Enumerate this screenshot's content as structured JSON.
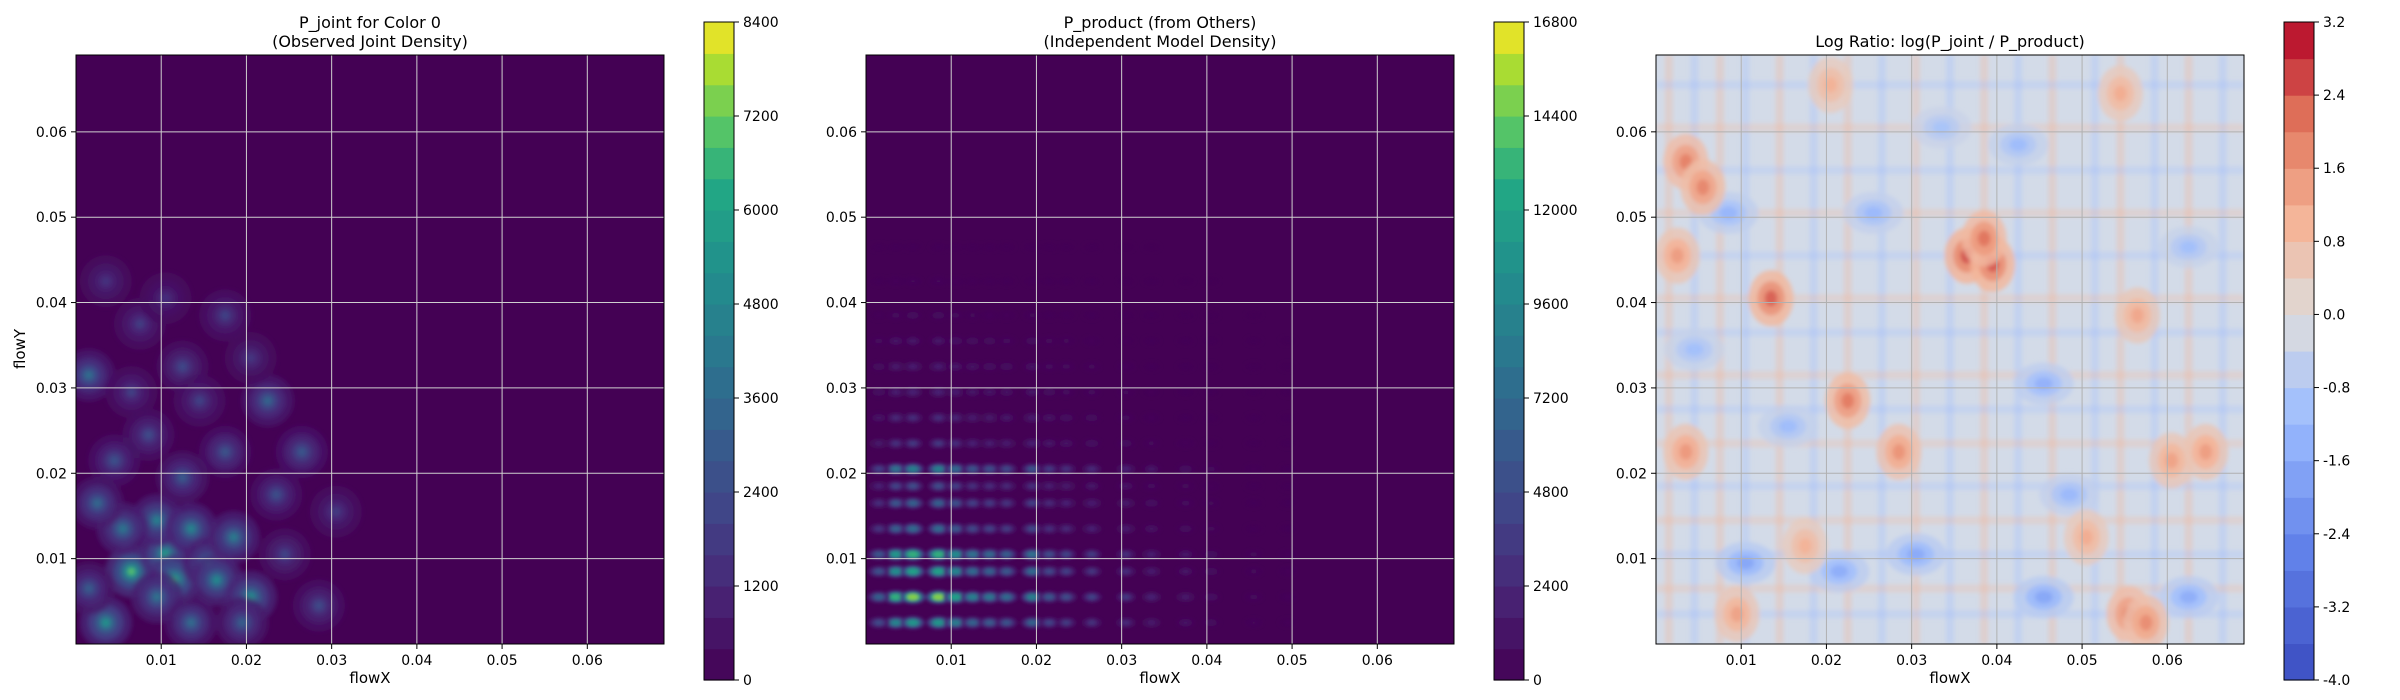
{
  "chart_data": [
    {
      "type": "heatmap",
      "title": "P_joint for Color 0",
      "subtitle": "(Observed Joint Density)",
      "xlabel": "flowX",
      "ylabel": "flowY",
      "xlim": [
        0.0,
        0.069
      ],
      "ylim": [
        0.0,
        0.069
      ],
      "xticks": [
        "0.01",
        "0.02",
        "0.03",
        "0.04",
        "0.05",
        "0.06"
      ],
      "yticks": [
        "0.01",
        "0.02",
        "0.03",
        "0.04",
        "0.05",
        "0.06"
      ],
      "grid": true,
      "colormap": "viridis",
      "colorbar": {
        "min": 0,
        "max": 8400,
        "ticks": [
          "0",
          "1200",
          "2400",
          "3600",
          "4800",
          "6000",
          "7200",
          "8400"
        ]
      },
      "hotspots": [
        {
          "x": 0.0035,
          "y": 0.0025,
          "v": 5600
        },
        {
          "x": 0.0065,
          "y": 0.0085,
          "v": 7200
        },
        {
          "x": 0.0105,
          "y": 0.0105,
          "v": 6200
        },
        {
          "x": 0.0115,
          "y": 0.0075,
          "v": 6800
        },
        {
          "x": 0.0095,
          "y": 0.0145,
          "v": 4800
        },
        {
          "x": 0.0135,
          "y": 0.0135,
          "v": 5000
        },
        {
          "x": 0.0155,
          "y": 0.0095,
          "v": 4400
        },
        {
          "x": 0.0185,
          "y": 0.0125,
          "v": 4600
        },
        {
          "x": 0.0165,
          "y": 0.0075,
          "v": 5200
        },
        {
          "x": 0.0205,
          "y": 0.0055,
          "v": 5400
        },
        {
          "x": 0.0095,
          "y": 0.0055,
          "v": 4200
        },
        {
          "x": 0.0055,
          "y": 0.0135,
          "v": 4300
        },
        {
          "x": 0.0025,
          "y": 0.0165,
          "v": 3800
        },
        {
          "x": 0.0015,
          "y": 0.0315,
          "v": 4000
        },
        {
          "x": 0.0225,
          "y": 0.0285,
          "v": 3600
        },
        {
          "x": 0.0265,
          "y": 0.0225,
          "v": 3000
        },
        {
          "x": 0.0125,
          "y": 0.0195,
          "v": 3200
        },
        {
          "x": 0.0175,
          "y": 0.0225,
          "v": 2900
        },
        {
          "x": 0.0085,
          "y": 0.0245,
          "v": 2600
        },
        {
          "x": 0.0125,
          "y": 0.0325,
          "v": 2400
        },
        {
          "x": 0.0175,
          "y": 0.0385,
          "v": 2200
        },
        {
          "x": 0.0075,
          "y": 0.0375,
          "v": 2000
        },
        {
          "x": 0.0035,
          "y": 0.0425,
          "v": 1700
        },
        {
          "x": 0.0235,
          "y": 0.0175,
          "v": 2700
        },
        {
          "x": 0.0285,
          "y": 0.0045,
          "v": 2500
        },
        {
          "x": 0.0245,
          "y": 0.0105,
          "v": 2300
        },
        {
          "x": 0.0195,
          "y": 0.0025,
          "v": 3400
        },
        {
          "x": 0.0045,
          "y": 0.0215,
          "v": 2800
        },
        {
          "x": 0.0145,
          "y": 0.0285,
          "v": 2200
        },
        {
          "x": 0.0305,
          "y": 0.0155,
          "v": 1900
        },
        {
          "x": 0.0205,
          "y": 0.0335,
          "v": 1800
        },
        {
          "x": 0.0015,
          "y": 0.0065,
          "v": 3300
        },
        {
          "x": 0.0135,
          "y": 0.0025,
          "v": 3900
        },
        {
          "x": 0.0105,
          "y": 0.0405,
          "v": 1600
        },
        {
          "x": 0.0065,
          "y": 0.0295,
          "v": 2100
        }
      ]
    },
    {
      "type": "heatmap",
      "title": "P_product (from Others)",
      "subtitle": "(Independent Model Density)",
      "xlabel": "flowX",
      "ylabel": "",
      "xlim": [
        0.0,
        0.069
      ],
      "ylim": [
        0.0,
        0.069
      ],
      "xticks": [
        "0.01",
        "0.02",
        "0.03",
        "0.04",
        "0.05",
        "0.06"
      ],
      "yticks": [
        "0.01",
        "0.02",
        "0.03",
        "0.04",
        "0.05",
        "0.06"
      ],
      "grid": true,
      "colormap": "viridis",
      "colorbar": {
        "min": 0,
        "max": 16800,
        "ticks": [
          "0",
          "2400",
          "4800",
          "7200",
          "9600",
          "12000",
          "14400",
          "16800"
        ]
      },
      "marginal_x_peaks": [
        {
          "x": 0.0035,
          "w": 0.9
        },
        {
          "x": 0.0055,
          "w": 1.0
        },
        {
          "x": 0.0085,
          "w": 1.0
        },
        {
          "x": 0.0105,
          "w": 0.85
        },
        {
          "x": 0.0125,
          "w": 0.7
        },
        {
          "x": 0.0145,
          "w": 0.65
        },
        {
          "x": 0.0165,
          "w": 0.6
        },
        {
          "x": 0.0195,
          "w": 0.7
        },
        {
          "x": 0.0215,
          "w": 0.5
        },
        {
          "x": 0.0235,
          "w": 0.45
        },
        {
          "x": 0.0265,
          "w": 0.4
        },
        {
          "x": 0.0305,
          "w": 0.35
        },
        {
          "x": 0.0335,
          "w": 0.25
        },
        {
          "x": 0.0375,
          "w": 0.2
        },
        {
          "x": 0.0405,
          "w": 0.15
        },
        {
          "x": 0.0455,
          "w": 0.1
        },
        {
          "x": 0.0495,
          "w": 0.08
        },
        {
          "x": 0.0015,
          "w": 0.55
        }
      ],
      "marginal_y_peaks": [
        {
          "y": 0.0025,
          "w": 0.8
        },
        {
          "y": 0.0055,
          "w": 1.0
        },
        {
          "y": 0.0085,
          "w": 0.85
        },
        {
          "y": 0.0105,
          "w": 0.9
        },
        {
          "y": 0.0135,
          "w": 0.6
        },
        {
          "y": 0.0165,
          "w": 0.55
        },
        {
          "y": 0.0185,
          "w": 0.45
        },
        {
          "y": 0.0205,
          "w": 0.7
        },
        {
          "y": 0.0235,
          "w": 0.35
        },
        {
          "y": 0.0265,
          "w": 0.3
        },
        {
          "y": 0.0295,
          "w": 0.25
        },
        {
          "y": 0.0325,
          "w": 0.22
        },
        {
          "y": 0.0355,
          "w": 0.18
        },
        {
          "y": 0.0385,
          "w": 0.12
        },
        {
          "y": 0.0425,
          "w": 0.08
        },
        {
          "y": 0.0465,
          "w": 0.05
        }
      ]
    },
    {
      "type": "heatmap",
      "title": "Log Ratio: log(P_joint / P_product)",
      "subtitle": "",
      "xlabel": "flowX",
      "ylabel": "",
      "xlim": [
        0.0,
        0.069
      ],
      "ylim": [
        0.0,
        0.069
      ],
      "xticks": [
        "0.01",
        "0.02",
        "0.03",
        "0.04",
        "0.05",
        "0.06"
      ],
      "yticks": [
        "0.01",
        "0.02",
        "0.03",
        "0.04",
        "0.05",
        "0.06"
      ],
      "grid": true,
      "colormap": "coolwarm",
      "colorbar": {
        "min": -4.0,
        "max": 3.2,
        "ticks": [
          "-4.0",
          "-3.2",
          "-2.4",
          "-1.6",
          "-0.8",
          "0.0",
          "0.8",
          "1.6",
          "2.4",
          "3.2"
        ]
      },
      "hot_regions": [
        {
          "x": 0.0035,
          "y": 0.0565,
          "v": 2.0
        },
        {
          "x": 0.0055,
          "y": 0.0535,
          "v": 1.9
        },
        {
          "x": 0.0025,
          "y": 0.0455,
          "v": 1.5
        },
        {
          "x": 0.0135,
          "y": 0.0405,
          "v": 2.4
        },
        {
          "x": 0.0365,
          "y": 0.0455,
          "v": 2.6
        },
        {
          "x": 0.0395,
          "y": 0.0445,
          "v": 2.5
        },
        {
          "x": 0.0385,
          "y": 0.0475,
          "v": 2.2
        },
        {
          "x": 0.0555,
          "y": 0.0035,
          "v": 2.0
        },
        {
          "x": 0.0575,
          "y": 0.0025,
          "v": 1.8
        },
        {
          "x": 0.0225,
          "y": 0.0285,
          "v": 2.1
        },
        {
          "x": 0.0285,
          "y": 0.0225,
          "v": 1.7
        },
        {
          "x": 0.0035,
          "y": 0.0225,
          "v": 1.6
        },
        {
          "x": 0.0605,
          "y": 0.0215,
          "v": 1.4
        },
        {
          "x": 0.0645,
          "y": 0.0225,
          "v": 1.5
        },
        {
          "x": 0.0565,
          "y": 0.0385,
          "v": 1.3
        },
        {
          "x": 0.0505,
          "y": 0.0125,
          "v": 1.2
        },
        {
          "x": 0.0205,
          "y": 0.0655,
          "v": 1.1
        },
        {
          "x": 0.0545,
          "y": 0.0645,
          "v": 1.2
        },
        {
          "x": 0.0095,
          "y": 0.0035,
          "v": 1.4
        },
        {
          "x": 0.0175,
          "y": 0.0115,
          "v": 1.1
        }
      ],
      "cold_regions": [
        {
          "x": 0.0105,
          "y": 0.0095,
          "v": -1.8
        },
        {
          "x": 0.0215,
          "y": 0.0085,
          "v": -1.6
        },
        {
          "x": 0.0305,
          "y": 0.0105,
          "v": -1.7
        },
        {
          "x": 0.0085,
          "y": 0.0505,
          "v": -1.4
        },
        {
          "x": 0.0455,
          "y": 0.0305,
          "v": -1.5
        },
        {
          "x": 0.0255,
          "y": 0.0505,
          "v": -1.3
        },
        {
          "x": 0.0625,
          "y": 0.0055,
          "v": -1.6
        },
        {
          "x": 0.0455,
          "y": 0.0055,
          "v": -1.8
        },
        {
          "x": 0.0155,
          "y": 0.0255,
          "v": -1.2
        },
        {
          "x": 0.0045,
          "y": 0.0345,
          "v": -1.1
        },
        {
          "x": 0.0425,
          "y": 0.0585,
          "v": -1.2
        },
        {
          "x": 0.0625,
          "y": 0.0465,
          "v": -1.1
        },
        {
          "x": 0.0485,
          "y": 0.0175,
          "v": -1.3
        },
        {
          "x": 0.0335,
          "y": 0.0605,
          "v": -1.0
        }
      ]
    }
  ]
}
